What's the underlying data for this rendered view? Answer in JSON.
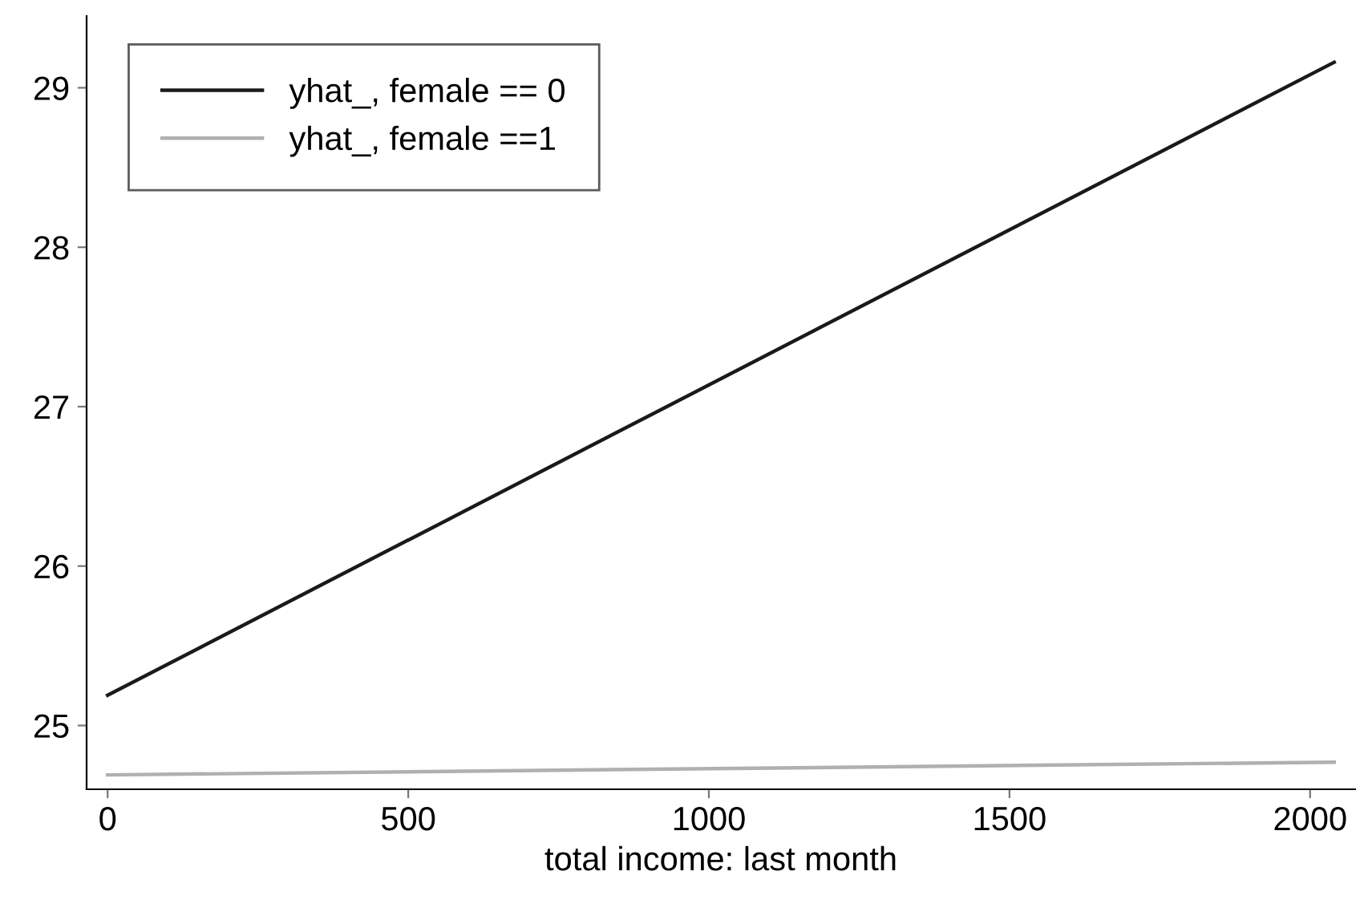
{
  "chart_data": {
    "type": "line",
    "xlabel": "total income: last month",
    "xlim": [
      -35,
      2075
    ],
    "xticks": [
      0,
      500,
      1000,
      1500,
      2000
    ],
    "ylim": [
      24.6,
      29.45
    ],
    "yticks": [
      25,
      26,
      27,
      28,
      29
    ],
    "x": [
      0,
      2040
    ],
    "series": [
      {
        "name": "yhat_, female == 0",
        "color": "#1a1a1a",
        "values": [
          25.19,
          29.16
        ]
      },
      {
        "name": "yhat_, female ==1",
        "color": "#b0b0b0",
        "values": [
          24.69,
          24.77
        ]
      }
    ],
    "grid": false,
    "legend": "top left",
    "line_style": "solid",
    "marker": "none"
  }
}
